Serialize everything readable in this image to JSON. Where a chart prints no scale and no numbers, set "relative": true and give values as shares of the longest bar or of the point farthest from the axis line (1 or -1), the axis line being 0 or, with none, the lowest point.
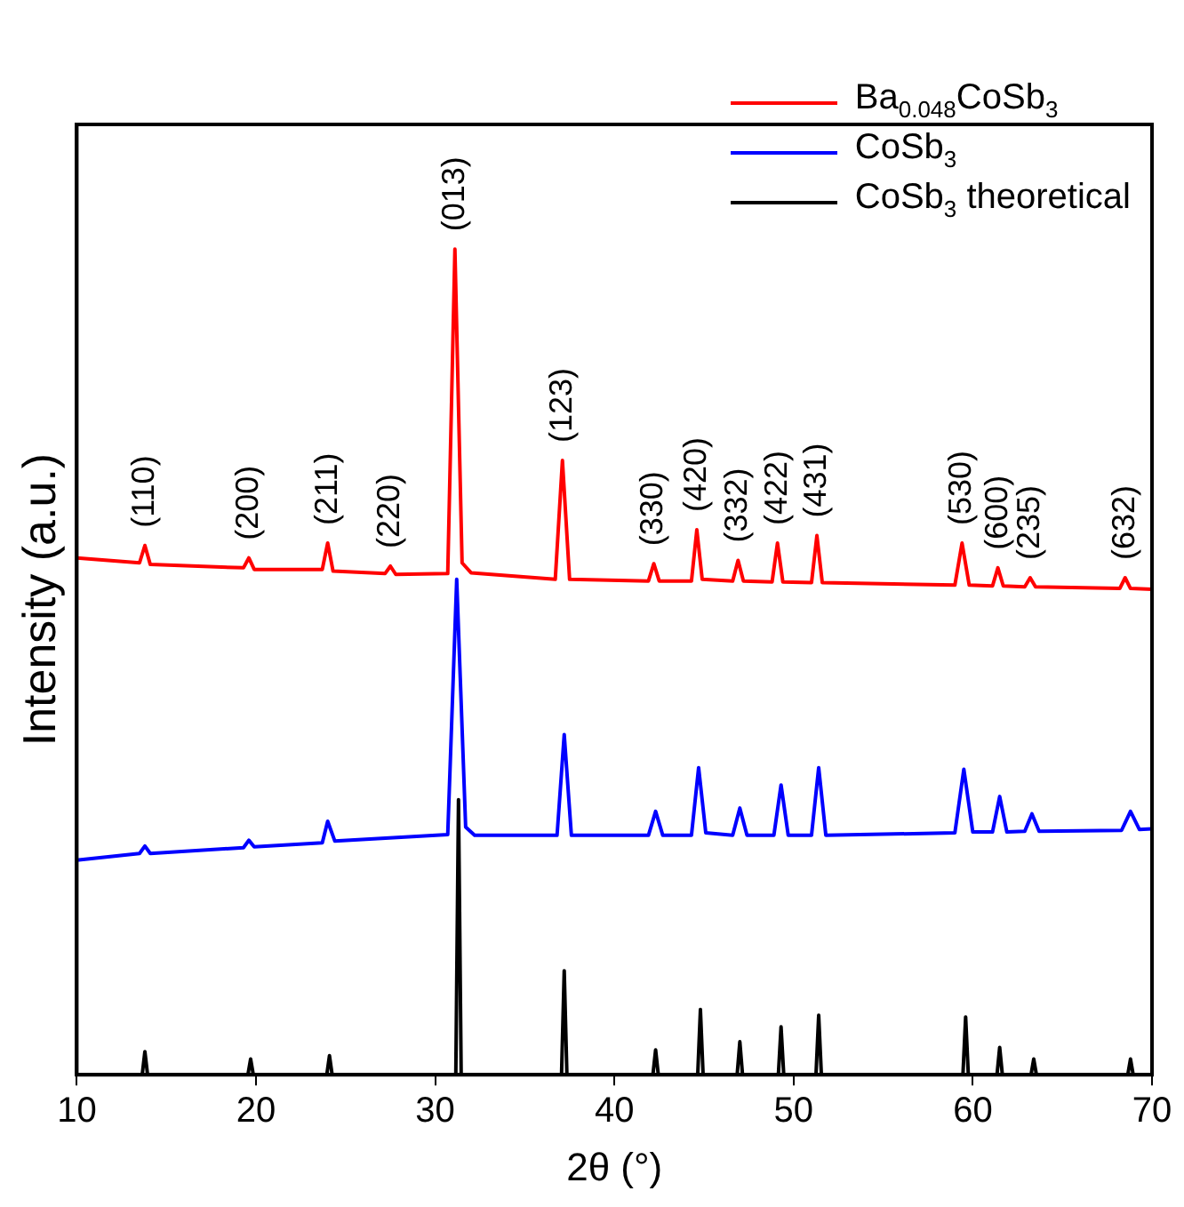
{
  "chart_data": {
    "type": "line",
    "relative": true,
    "xlabel": "2θ (°)",
    "ylabel": "Intensity (a.u.)",
    "xlim": [
      10,
      70
    ],
    "xticks": [
      10,
      20,
      30,
      40,
      50,
      60,
      70
    ],
    "grid": false,
    "legend": "top right",
    "marker": "none",
    "line_style": "solid",
    "series": [
      {
        "name": "Ba$_{0.048}$CoSb$_{3}$",
        "color": "#ff0000",
        "x": [
          10,
          13.5,
          13.8,
          14.1,
          19.3,
          19.6,
          19.9,
          23.7,
          24.0,
          24.3,
          27.2,
          27.5,
          27.8,
          30.7,
          31.1,
          31.5,
          32.0,
          36.7,
          37.1,
          37.5,
          41.9,
          42.2,
          42.5,
          44.3,
          44.6,
          44.9,
          46.6,
          46.9,
          47.2,
          48.8,
          49.1,
          49.4,
          51.0,
          51.3,
          51.6,
          59.0,
          59.4,
          59.8,
          61.1,
          61.4,
          61.7,
          62.9,
          63.2,
          63.5,
          68.2,
          68.5,
          68.8,
          70
        ],
        "values": [
          0.626,
          0.62,
          0.641,
          0.618,
          0.614,
          0.626,
          0.612,
          0.612,
          0.644,
          0.61,
          0.607,
          0.616,
          0.606,
          0.607,
          1,
          0.62,
          0.608,
          0.6,
          0.744,
          0.6,
          0.598,
          0.619,
          0.598,
          0.598,
          0.66,
          0.6,
          0.598,
          0.623,
          0.598,
          0.597,
          0.644,
          0.597,
          0.596,
          0.653,
          0.596,
          0.593,
          0.644,
          0.593,
          0.592,
          0.614,
          0.592,
          0.591,
          0.602,
          0.591,
          0.589,
          0.602,
          0.589,
          0.588
        ]
      },
      {
        "name": "CoSb$_{3}$",
        "color": "#0000ff",
        "x": [
          10,
          13.5,
          13.8,
          14.1,
          19.3,
          19.6,
          19.9,
          23.7,
          24.0,
          24.4,
          30.7,
          31.2,
          31.7,
          32.2,
          36.8,
          37.2,
          37.6,
          41.9,
          42.3,
          42.7,
          44.3,
          44.7,
          45.1,
          46.6,
          47.0,
          47.4,
          48.9,
          49.3,
          49.7,
          51.0,
          51.4,
          51.8,
          59.0,
          59.5,
          60.0,
          61.1,
          61.5,
          61.9,
          62.9,
          63.3,
          63.7,
          68.3,
          68.8,
          69.3,
          70
        ],
        "values": [
          0.26,
          0.268,
          0.277,
          0.268,
          0.275,
          0.284,
          0.276,
          0.281,
          0.307,
          0.283,
          0.291,
          0.6,
          0.3,
          0.29,
          0.29,
          0.412,
          0.29,
          0.29,
          0.319,
          0.29,
          0.29,
          0.372,
          0.293,
          0.29,
          0.323,
          0.29,
          0.29,
          0.351,
          0.29,
          0.29,
          0.372,
          0.29,
          0.293,
          0.37,
          0.294,
          0.294,
          0.337,
          0.294,
          0.295,
          0.316,
          0.295,
          0.296,
          0.319,
          0.297,
          0.298
        ]
      },
      {
        "name": "CoSb$_{3}$ theoretical",
        "color": "#000000",
        "x": [
          10,
          13.65,
          13.8,
          13.95,
          19.55,
          19.7,
          19.85,
          23.95,
          24.1,
          24.25,
          31.15,
          31.3,
          31.45,
          37.05,
          37.2,
          37.35,
          42.15,
          42.3,
          42.45,
          44.65,
          44.8,
          44.95,
          46.85,
          47.0,
          47.15,
          49.15,
          49.3,
          49.45,
          51.25,
          51.4,
          51.55,
          59.45,
          59.6,
          59.75,
          61.35,
          61.5,
          61.65,
          63.25,
          63.4,
          63.55,
          68.65,
          68.8,
          68.95,
          70
        ],
        "values": [
          0,
          0,
          0.028,
          0,
          0,
          0.019,
          0,
          0,
          0.023,
          0,
          0,
          0.333,
          0,
          0,
          0.126,
          0,
          0,
          0.03,
          0,
          0,
          0.079,
          0,
          0,
          0.04,
          0,
          0,
          0.058,
          0,
          0,
          0.072,
          0,
          0,
          0.07,
          0,
          0,
          0.033,
          0,
          0,
          0.019,
          0,
          0,
          0.019,
          0,
          0
        ]
      }
    ],
    "annotations": [
      {
        "text": "(110)",
        "x": 13.8,
        "y": 0.641
      },
      {
        "text": "(200)",
        "x": 19.6,
        "y": 0.626
      },
      {
        "text": "(211)",
        "x": 24.0,
        "y": 0.644
      },
      {
        "text": "(220)",
        "x": 27.5,
        "y": 0.616
      },
      {
        "text": "(013)",
        "x": 31.1,
        "y": 1
      },
      {
        "text": "(123)",
        "x": 37.1,
        "y": 0.744
      },
      {
        "text": "(330)",
        "x": 42.2,
        "y": 0.619
      },
      {
        "text": "(420)",
        "x": 44.6,
        "y": 0.66
      },
      {
        "text": "(332)",
        "x": 46.9,
        "y": 0.623
      },
      {
        "text": "(422)",
        "x": 49.1,
        "y": 0.644
      },
      {
        "text": "(431)",
        "x": 51.3,
        "y": 0.653
      },
      {
        "text": "(530)",
        "x": 59.4,
        "y": 0.644
      },
      {
        "text": "(600)",
        "x": 61.4,
        "y": 0.614
      },
      {
        "text": "(235)",
        "x": 63.2,
        "y": 0.602
      },
      {
        "text": "(632)",
        "x": 68.5,
        "y": 0.602
      }
    ]
  }
}
